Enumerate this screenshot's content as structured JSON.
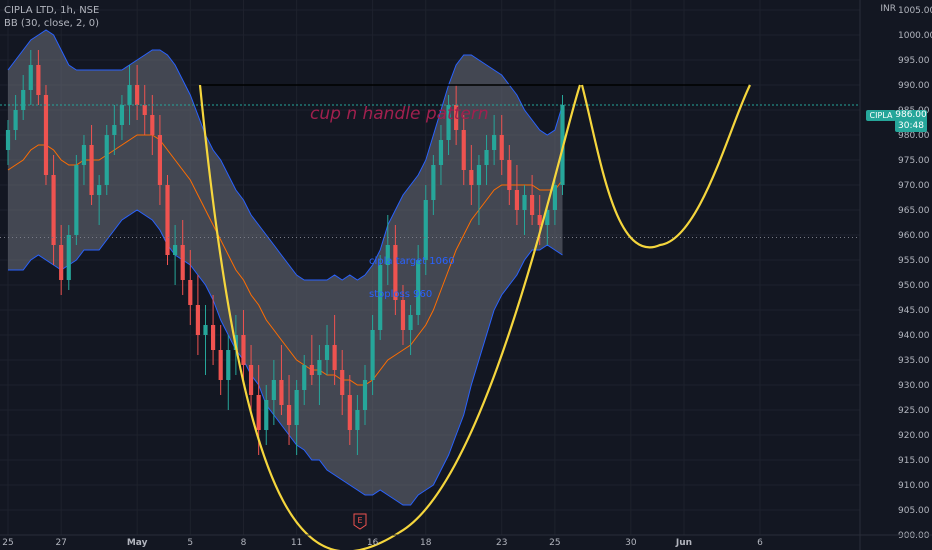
{
  "legend": {
    "symbol_line": "CIPLA LTD, 1h, NSE",
    "indicator_line": "BB (30, close, 2, 0)"
  },
  "axis": {
    "currency": "INR",
    "y_ticks": [
      "1005.00",
      "1000.00",
      "995.00",
      "990.00",
      "985.00",
      "980.00",
      "975.00",
      "970.00",
      "965.00",
      "960.00",
      "955.00",
      "950.00",
      "945.00",
      "940.00",
      "935.00",
      "930.00",
      "925.00",
      "920.00",
      "915.00",
      "910.00",
      "905.00",
      "900.00"
    ],
    "x_ticks": [
      "25",
      "27",
      "May",
      "5",
      "8",
      "11",
      "16",
      "18",
      "23",
      "25",
      "30",
      "Jun",
      "6"
    ]
  },
  "price_label": {
    "symbol": "CIPLA",
    "price": "986.00",
    "countdown": "30:48"
  },
  "annotations": {
    "pattern_title": "cup n handle pattern",
    "target_text": "cipla target 1060",
    "stoploss_text": "stoploss 960",
    "earnings_marker": "E"
  },
  "colors": {
    "background": "#131722",
    "up": "#26a69a",
    "down": "#ef5350",
    "band_fill": "#6b6f7a",
    "band_line": "#2962ff",
    "basis": "#ff6d00",
    "cup": "#f5d63d",
    "resistance": "#000000",
    "title_text": "#a0204e",
    "note_text": "#2962ff"
  },
  "chart_data": {
    "type": "candlestick",
    "title": "CIPLA LTD, 1h, NSE",
    "indicator": "BB (30, close, 2, 0)",
    "ylabel": "INR",
    "ylim": [
      900,
      1007
    ],
    "x_range": [
      0,
      94
    ],
    "x_ticks": [
      {
        "label": "25",
        "x": 0
      },
      {
        "label": "27",
        "x": 7
      },
      {
        "label": "May",
        "x": 17
      },
      {
        "label": "5",
        "x": 24
      },
      {
        "label": "8",
        "x": 31
      },
      {
        "label": "11",
        "x": 38
      },
      {
        "label": "16",
        "x": 48
      },
      {
        "label": "18",
        "x": 55
      },
      {
        "label": "23",
        "x": 65
      },
      {
        "label": "25",
        "x": 72
      },
      {
        "label": "30",
        "x": 82
      },
      {
        "label": "Jun",
        "x": 89
      },
      {
        "label": "6",
        "x": 99
      }
    ],
    "candles": [
      [
        977,
        983,
        974,
        981
      ],
      [
        981,
        988,
        979,
        985
      ],
      [
        985,
        992,
        983,
        989
      ],
      [
        989,
        997,
        986,
        994
      ],
      [
        994,
        997,
        986,
        988
      ],
      [
        988,
        990,
        970,
        972
      ],
      [
        972,
        976,
        954,
        958
      ],
      [
        958,
        962,
        948,
        951
      ],
      [
        951,
        962,
        949,
        960
      ],
      [
        960,
        976,
        958,
        974
      ],
      [
        974,
        980,
        970,
        978
      ],
      [
        978,
        982,
        966,
        968
      ],
      [
        968,
        972,
        962,
        970
      ],
      [
        970,
        982,
        968,
        980
      ],
      [
        980,
        986,
        976,
        982
      ],
      [
        982,
        988,
        979,
        986
      ],
      [
        986,
        994,
        982,
        990
      ],
      [
        990,
        994,
        983,
        986
      ],
      [
        986,
        990,
        980,
        984
      ],
      [
        984,
        988,
        976,
        980
      ],
      [
        980,
        984,
        966,
        970
      ],
      [
        970,
        972,
        954,
        956
      ],
      [
        956,
        962,
        950,
        958
      ],
      [
        958,
        963,
        948,
        951
      ],
      [
        951,
        957,
        942,
        946
      ],
      [
        946,
        952,
        936,
        940
      ],
      [
        940,
        946,
        932,
        942
      ],
      [
        942,
        948,
        934,
        937
      ],
      [
        937,
        942,
        928,
        931
      ],
      [
        931,
        940,
        925,
        937
      ],
      [
        937,
        944,
        932,
        940
      ],
      [
        940,
        945,
        930,
        934
      ],
      [
        934,
        938,
        924,
        928
      ],
      [
        928,
        934,
        916,
        921
      ],
      [
        921,
        930,
        918,
        927
      ],
      [
        927,
        935,
        922,
        931
      ],
      [
        931,
        938,
        924,
        926
      ],
      [
        926,
        932,
        918,
        922
      ],
      [
        922,
        931,
        916,
        929
      ],
      [
        929,
        936,
        926,
        934
      ],
      [
        934,
        940,
        930,
        932
      ],
      [
        932,
        938,
        926,
        935
      ],
      [
        935,
        942,
        932,
        938
      ],
      [
        938,
        944,
        930,
        933
      ],
      [
        933,
        937,
        924,
        928
      ],
      [
        928,
        932,
        918,
        921
      ],
      [
        921,
        928,
        916,
        925
      ],
      [
        925,
        934,
        922,
        931
      ],
      [
        931,
        944,
        928,
        941
      ],
      [
        941,
        956,
        939,
        954
      ],
      [
        954,
        964,
        950,
        958
      ],
      [
        958,
        962,
        944,
        947
      ],
      [
        947,
        950,
        938,
        941
      ],
      [
        941,
        946,
        936,
        944
      ],
      [
        944,
        958,
        942,
        955
      ],
      [
        955,
        970,
        952,
        967
      ],
      [
        967,
        976,
        964,
        974
      ],
      [
        974,
        982,
        970,
        979
      ],
      [
        979,
        988,
        976,
        986
      ],
      [
        986,
        990,
        978,
        981
      ],
      [
        981,
        984,
        970,
        973
      ],
      [
        973,
        978,
        966,
        970
      ],
      [
        970,
        976,
        962,
        974
      ],
      [
        974,
        980,
        970,
        977
      ],
      [
        977,
        984,
        974,
        980
      ],
      [
        980,
        984,
        972,
        975
      ],
      [
        975,
        978,
        966,
        969
      ],
      [
        969,
        974,
        962,
        965
      ],
      [
        965,
        970,
        960,
        968
      ],
      [
        968,
        972,
        962,
        964
      ],
      [
        964,
        968,
        958,
        962
      ],
      [
        962,
        966,
        958,
        965
      ],
      [
        965,
        972,
        962,
        970
      ],
      [
        970,
        988,
        968,
        986
      ]
    ],
    "series": [
      {
        "values": [
          973,
          974,
          975,
          977,
          978,
          978,
          977,
          975,
          974,
          974,
          975,
          975,
          975,
          976,
          977,
          978,
          979,
          980,
          980,
          980,
          979,
          977,
          975,
          973,
          971,
          968,
          965,
          962,
          959,
          956,
          953,
          951,
          948,
          946,
          943,
          941,
          939,
          937,
          935,
          934,
          933,
          933,
          932,
          932,
          931,
          931,
          930,
          930,
          931,
          933,
          935,
          936,
          937,
          938,
          940,
          942,
          945,
          949,
          953,
          957,
          960,
          963,
          965,
          967,
          969,
          970,
          970,
          970,
          970,
          970,
          969,
          969,
          969,
          971
        ]
      },
      {
        "values": [
          993,
          995,
          997,
          999,
          1000,
          1001,
          1000,
          997,
          994,
          993,
          993,
          993,
          993,
          993,
          993,
          993,
          994,
          995,
          996,
          997,
          997,
          996,
          994,
          991,
          988,
          984,
          980,
          977,
          975,
          972,
          969,
          967,
          964,
          962,
          960,
          958,
          956,
          954,
          952,
          951,
          951,
          951,
          951,
          952,
          951,
          952,
          951,
          952,
          954,
          957,
          962,
          965,
          968,
          970,
          972,
          975,
          980,
          985,
          990,
          994,
          996,
          996,
          995,
          994,
          993,
          992,
          990,
          988,
          985,
          983,
          981,
          980,
          981,
          986
        ]
      },
      {
        "values": [
          953,
          953,
          953,
          955,
          956,
          955,
          954,
          953,
          954,
          955,
          957,
          957,
          957,
          959,
          961,
          963,
          964,
          965,
          964,
          963,
          961,
          958,
          956,
          955,
          954,
          952,
          950,
          947,
          943,
          940,
          937,
          935,
          932,
          930,
          926,
          924,
          922,
          920,
          918,
          917,
          915,
          915,
          913,
          912,
          911,
          910,
          909,
          908,
          908,
          909,
          908,
          907,
          906,
          906,
          908,
          909,
          910,
          913,
          916,
          920,
          924,
          930,
          935,
          940,
          945,
          948,
          950,
          952,
          955,
          957,
          957,
          958,
          957,
          956
        ]
      }
    ],
    "resistance_level": 990,
    "cup_low": 901,
    "handle_low": 958
  }
}
